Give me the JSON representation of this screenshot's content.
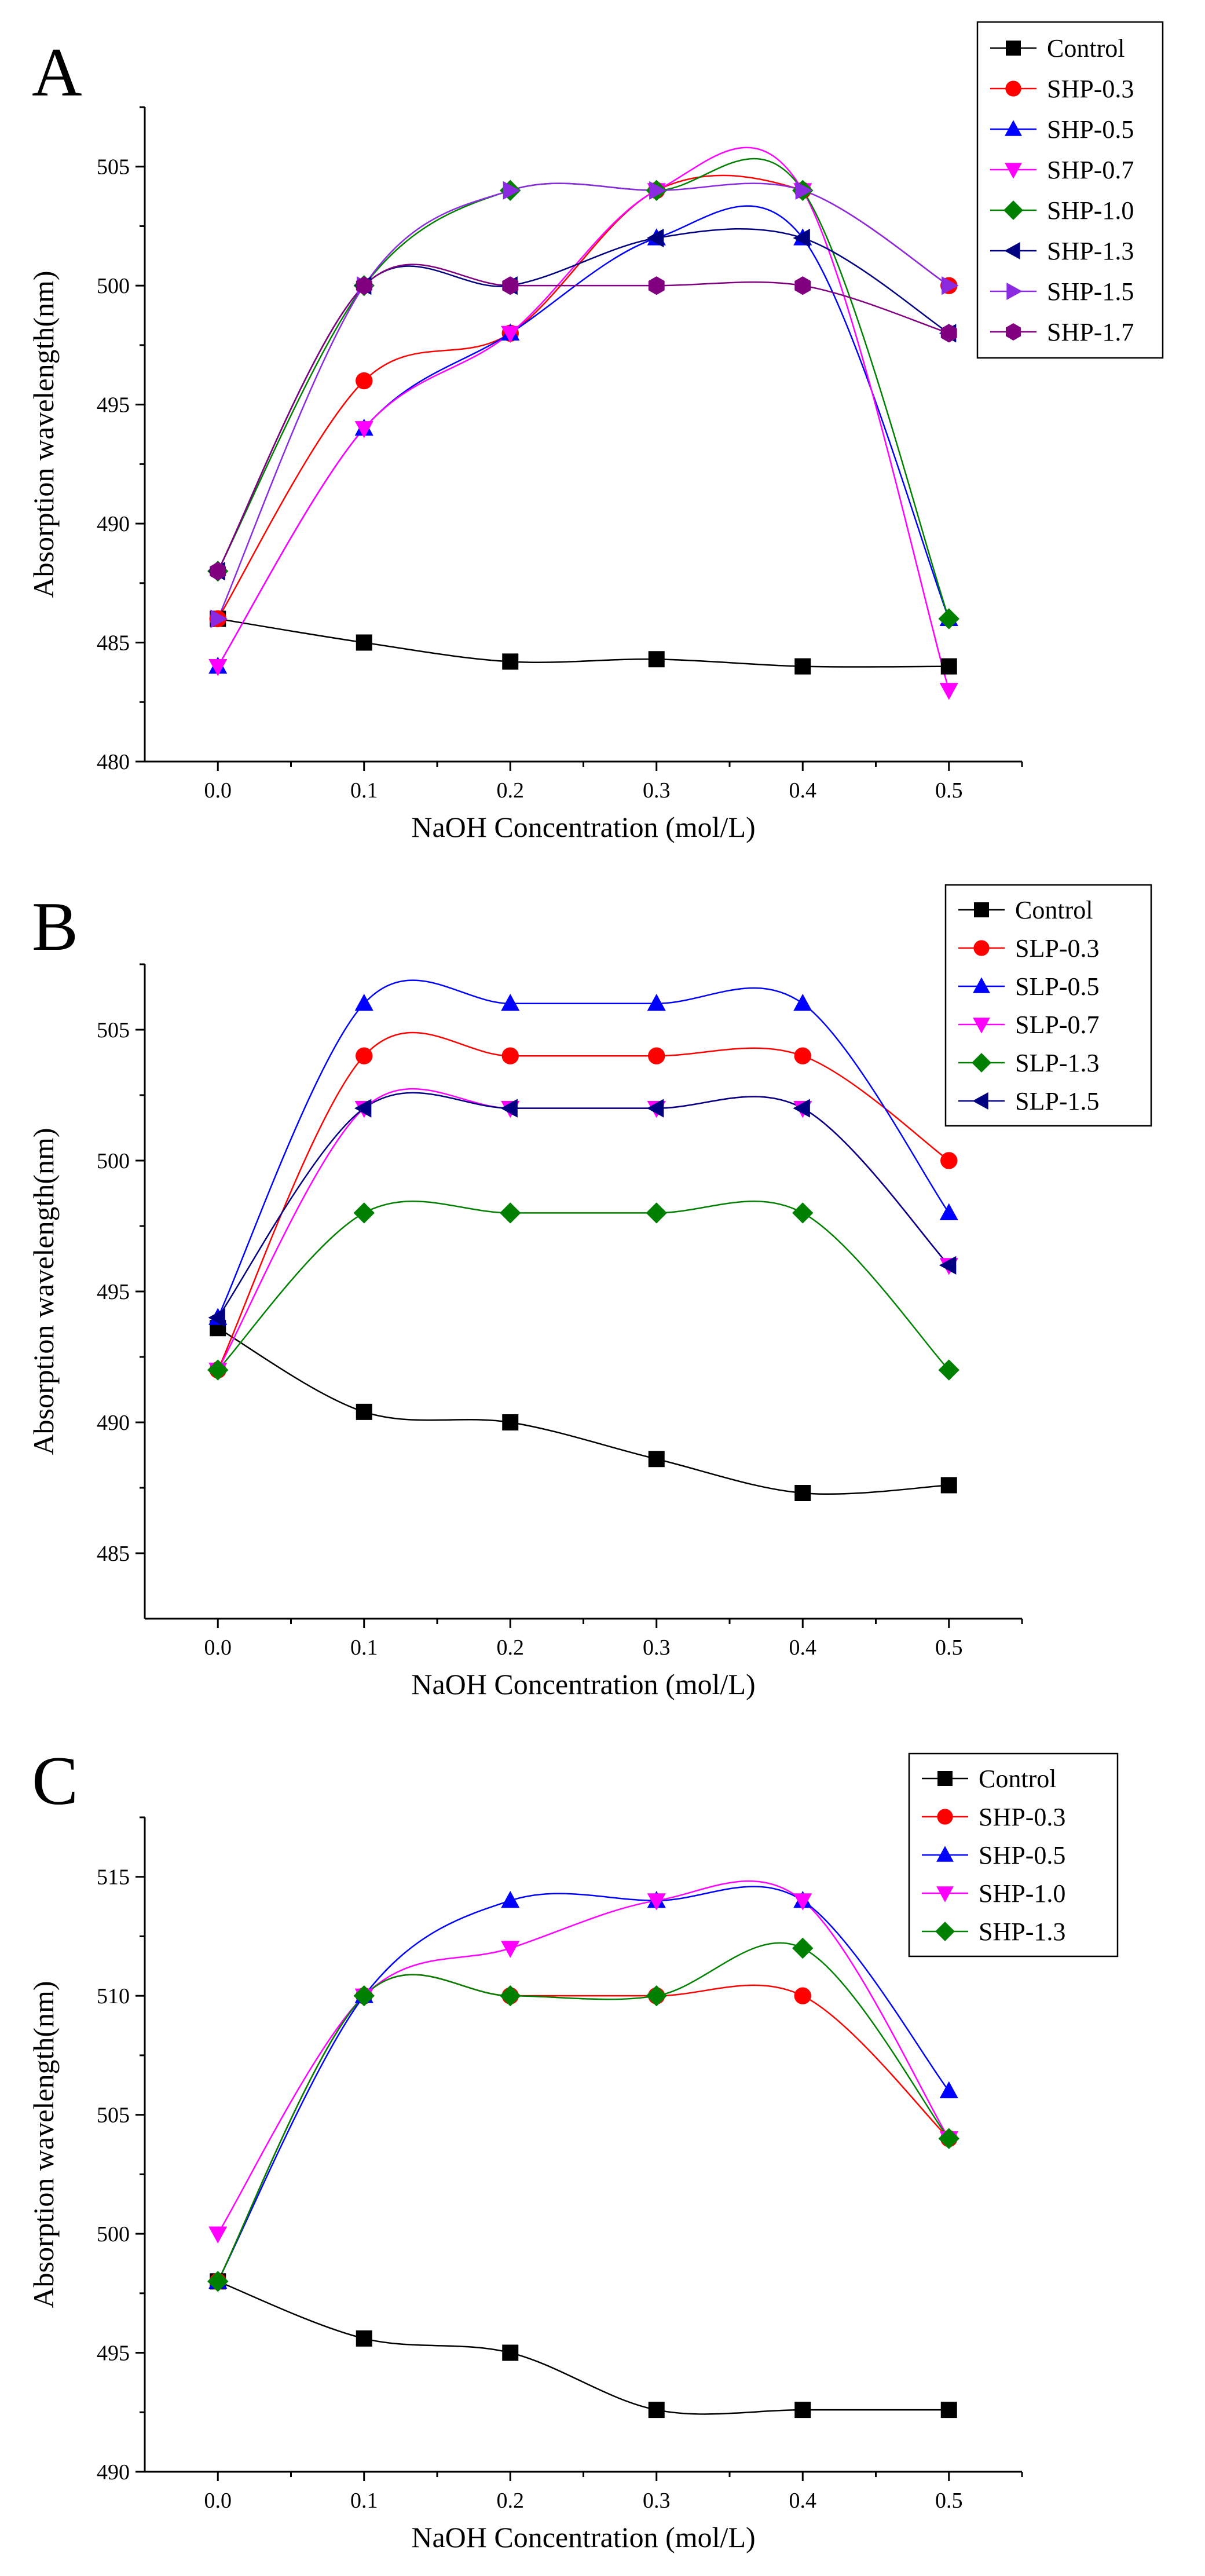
{
  "chart_data": [
    {
      "type": "line",
      "panel_label": "A",
      "xlabel": "NaOH Concentration (mol/L)",
      "ylabel": "Absorption wavelength(nm)",
      "x": [
        0.0,
        0.1,
        0.2,
        0.3,
        0.4,
        0.5
      ],
      "xticks": [
        "0.0",
        "0.1",
        "0.2",
        "0.3",
        "0.4",
        "0.5"
      ],
      "xlim": [
        -0.05,
        0.55
      ],
      "ylim": [
        480,
        507.5
      ],
      "yticks": [
        480,
        485,
        490,
        495,
        500,
        505
      ],
      "legend_position": "top-right",
      "series": [
        {
          "name": "Control",
          "color": "#000000",
          "marker": "square",
          "values": [
            486,
            485,
            484.2,
            484.3,
            484,
            484
          ]
        },
        {
          "name": "SHP-0.3",
          "color": "#ff0000",
          "marker": "circle",
          "values": [
            486,
            496,
            498,
            504,
            504,
            500
          ]
        },
        {
          "name": "SHP-0.5",
          "color": "#0000ff",
          "marker": "triangle-up",
          "values": [
            484,
            494,
            498,
            502,
            502,
            486
          ]
        },
        {
          "name": "SHP-0.7",
          "color": "#ff00ff",
          "marker": "triangle-down",
          "values": [
            484,
            494,
            498,
            504,
            504,
            483
          ]
        },
        {
          "name": "SHP-1.0",
          "color": "#008000",
          "marker": "diamond",
          "values": [
            488,
            500,
            504,
            504,
            504,
            486
          ]
        },
        {
          "name": "SHP-1.3",
          "color": "#000080",
          "marker": "triangle-left",
          "values": [
            488,
            500,
            500,
            502,
            502,
            498
          ]
        },
        {
          "name": "SHP-1.5",
          "color": "#8a2be2",
          "marker": "triangle-right",
          "values": [
            486,
            500,
            504,
            504,
            504,
            500
          ]
        },
        {
          "name": "SHP-1.7",
          "color": "#800080",
          "marker": "hexagon",
          "values": [
            488,
            500,
            500,
            500,
            500,
            498
          ]
        }
      ]
    },
    {
      "type": "line",
      "panel_label": "B",
      "xlabel": "NaOH Concentration (mol/L)",
      "ylabel": "Absorption wavelength(nm)",
      "x": [
        0.0,
        0.1,
        0.2,
        0.3,
        0.4,
        0.5
      ],
      "xticks": [
        "0.0",
        "0.1",
        "0.2",
        "0.3",
        "0.4",
        "0.5"
      ],
      "xlim": [
        -0.05,
        0.55
      ],
      "ylim": [
        482.5,
        507.5
      ],
      "yticks": [
        485,
        490,
        495,
        500,
        505
      ],
      "legend_position": "top-right",
      "series": [
        {
          "name": "Control",
          "color": "#000000",
          "marker": "square",
          "values": [
            493.6,
            490.4,
            490,
            488.6,
            487.3,
            487.6
          ]
        },
        {
          "name": "SLP-0.3",
          "color": "#ff0000",
          "marker": "circle",
          "values": [
            492,
            504,
            504,
            504,
            504,
            500
          ]
        },
        {
          "name": "SLP-0.5",
          "color": "#0000ff",
          "marker": "triangle-up",
          "values": [
            494,
            506,
            506,
            506,
            506,
            498
          ]
        },
        {
          "name": "SLP-0.7",
          "color": "#ff00ff",
          "marker": "triangle-down",
          "values": [
            492,
            502,
            502,
            502,
            502,
            496
          ]
        },
        {
          "name": "SLP-1.3",
          "color": "#008000",
          "marker": "diamond",
          "values": [
            492,
            498,
            498,
            498,
            498,
            492
          ]
        },
        {
          "name": "SLP-1.5",
          "color": "#000080",
          "marker": "triangle-left",
          "values": [
            494,
            502,
            502,
            502,
            502,
            496
          ]
        }
      ]
    },
    {
      "type": "line",
      "panel_label": "C",
      "xlabel": "NaOH Concentration (mol/L)",
      "ylabel": "Absorption wavelength(nm)",
      "x": [
        0.0,
        0.1,
        0.2,
        0.3,
        0.4,
        0.5
      ],
      "xticks": [
        "0.0",
        "0.1",
        "0.2",
        "0.3",
        "0.4",
        "0.5"
      ],
      "xlim": [
        -0.05,
        0.55
      ],
      "ylim": [
        490,
        517.5
      ],
      "yticks": [
        490,
        495,
        500,
        505,
        510,
        515
      ],
      "legend_position": "top-right",
      "series": [
        {
          "name": "Control",
          "color": "#000000",
          "marker": "square",
          "values": [
            498,
            495.6,
            495,
            492.6,
            492.6,
            492.6
          ]
        },
        {
          "name": "SHP-0.3",
          "color": "#ff0000",
          "marker": "circle",
          "values": [
            498,
            510,
            510,
            510,
            510,
            504
          ]
        },
        {
          "name": "SHP-0.5",
          "color": "#0000ff",
          "marker": "triangle-up",
          "values": [
            498,
            510,
            514,
            514,
            514,
            506
          ]
        },
        {
          "name": "SHP-1.0",
          "color": "#ff00ff",
          "marker": "triangle-down",
          "values": [
            500,
            510,
            512,
            514,
            514,
            504
          ]
        },
        {
          "name": "SHP-1.3",
          "color": "#008000",
          "marker": "diamond",
          "values": [
            498,
            510,
            510,
            510,
            512,
            504
          ]
        }
      ]
    }
  ]
}
